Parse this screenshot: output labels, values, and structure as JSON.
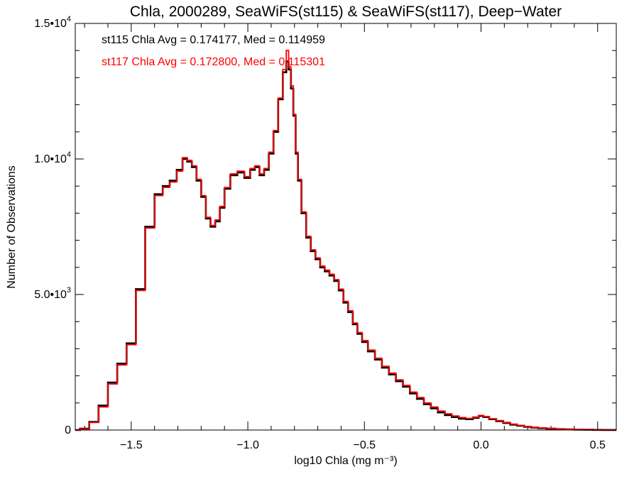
{
  "chart_data": {
    "type": "line",
    "title": "Chla, 2000289, SeaWiFS(st115) & SeaWiFS(st117), Deep−Water",
    "xlabel": "log10 Chla (mg m⁻³)",
    "ylabel": "Number of Observations",
    "xlim": [
      -1.74,
      0.58
    ],
    "ylim": [
      0,
      15000
    ],
    "x_ticks": [
      {
        "value": -1.5,
        "label": "−1.5"
      },
      {
        "value": -1.0,
        "label": "−1.0"
      },
      {
        "value": -0.5,
        "label": "−0.5"
      },
      {
        "value": 0.0,
        "label": "0.0"
      },
      {
        "value": 0.5,
        "label": "0.5"
      }
    ],
    "y_ticks": [
      {
        "value": 0,
        "mantissa": "0",
        "exp": ""
      },
      {
        "value": 5000,
        "mantissa": "5.0•10",
        "exp": "3"
      },
      {
        "value": 10000,
        "mantissa": "1.0•10",
        "exp": "4"
      },
      {
        "value": 15000,
        "mantissa": "1.5•10",
        "exp": "4"
      }
    ],
    "annotations": [
      {
        "text": "st115 Chla Avg = 0.174177, Med = 0.114959",
        "color": "#000000"
      },
      {
        "text": "st117 Chla Avg = 0.172800, Med = 0.115301",
        "color": "#ff0000"
      }
    ],
    "series": [
      {
        "color": "#000000",
        "x": [
          -1.74,
          -1.7,
          -1.66,
          -1.62,
          -1.58,
          -1.54,
          -1.5,
          -1.46,
          -1.42,
          -1.38,
          -1.35,
          -1.32,
          -1.29,
          -1.27,
          -1.25,
          -1.23,
          -1.21,
          -1.19,
          -1.17,
          -1.15,
          -1.13,
          -1.11,
          -1.09,
          -1.06,
          -1.03,
          -1.0,
          -0.98,
          -0.96,
          -0.94,
          -0.92,
          -0.9,
          -0.88,
          -0.86,
          -0.84,
          -0.83,
          -0.82,
          -0.81,
          -0.8,
          -0.79,
          -0.78,
          -0.76,
          -0.74,
          -0.72,
          -0.7,
          -0.68,
          -0.66,
          -0.64,
          -0.62,
          -0.6,
          -0.58,
          -0.56,
          -0.54,
          -0.52,
          -0.5,
          -0.47,
          -0.44,
          -0.41,
          -0.38,
          -0.35,
          -0.32,
          -0.29,
          -0.26,
          -0.23,
          -0.2,
          -0.17,
          -0.14,
          -0.11,
          -0.08,
          -0.05,
          -0.02,
          0.0,
          0.02,
          0.05,
          0.08,
          0.11,
          0.14,
          0.17,
          0.2,
          0.23,
          0.26,
          0.3,
          0.34,
          0.38,
          0.42,
          0.46,
          0.5,
          0.54,
          0.58
        ],
        "values": [
          0,
          50,
          300,
          900,
          1750,
          2450,
          3200,
          5200,
          7500,
          8700,
          9000,
          9200,
          9600,
          10000,
          9900,
          9700,
          9200,
          8600,
          7800,
          7500,
          7700,
          8200,
          8900,
          9400,
          9500,
          9300,
          9600,
          9700,
          9400,
          9600,
          10200,
          11000,
          12200,
          13200,
          13600,
          13300,
          12600,
          11600,
          10200,
          9200,
          8000,
          7100,
          6600,
          6300,
          6000,
          5850,
          5700,
          5500,
          5150,
          4700,
          4350,
          3900,
          3550,
          3250,
          2900,
          2600,
          2300,
          2050,
          1800,
          1600,
          1350,
          1150,
          950,
          800,
          650,
          550,
          480,
          420,
          400,
          450,
          520,
          480,
          400,
          330,
          260,
          200,
          160,
          120,
          90,
          70,
          50,
          35,
          25,
          15,
          10,
          5,
          3,
          2
        ]
      },
      {
        "color": "#ff0000",
        "x": [
          -1.74,
          -1.7,
          -1.66,
          -1.62,
          -1.58,
          -1.54,
          -1.5,
          -1.46,
          -1.42,
          -1.38,
          -1.35,
          -1.32,
          -1.29,
          -1.27,
          -1.25,
          -1.23,
          -1.21,
          -1.19,
          -1.17,
          -1.15,
          -1.13,
          -1.11,
          -1.09,
          -1.06,
          -1.03,
          -1.0,
          -0.98,
          -0.96,
          -0.94,
          -0.92,
          -0.9,
          -0.88,
          -0.86,
          -0.84,
          -0.83,
          -0.82,
          -0.81,
          -0.8,
          -0.79,
          -0.78,
          -0.76,
          -0.74,
          -0.72,
          -0.7,
          -0.68,
          -0.66,
          -0.64,
          -0.62,
          -0.6,
          -0.58,
          -0.56,
          -0.54,
          -0.52,
          -0.5,
          -0.47,
          -0.44,
          -0.41,
          -0.38,
          -0.35,
          -0.32,
          -0.29,
          -0.26,
          -0.23,
          -0.2,
          -0.17,
          -0.14,
          -0.11,
          -0.08,
          -0.05,
          -0.02,
          0.0,
          0.02,
          0.05,
          0.08,
          0.11,
          0.14,
          0.17,
          0.2,
          0.23,
          0.26,
          0.3,
          0.34,
          0.38,
          0.42,
          0.46,
          0.5,
          0.54,
          0.58
        ],
        "values": [
          0,
          40,
          280,
          850,
          1700,
          2400,
          3150,
          5150,
          7450,
          8650,
          8950,
          9150,
          9550,
          10050,
          9950,
          9750,
          9250,
          8650,
          7850,
          7550,
          7750,
          8250,
          8950,
          9450,
          9550,
          9350,
          9650,
          9750,
          9450,
          9650,
          10250,
          11050,
          12250,
          13300,
          14000,
          13400,
          12700,
          11650,
          10250,
          9250,
          8050,
          7150,
          6650,
          6350,
          6050,
          5900,
          5750,
          5550,
          5200,
          4750,
          4400,
          3950,
          3600,
          3300,
          2950,
          2650,
          2350,
          2100,
          1850,
          1650,
          1400,
          1200,
          1000,
          850,
          700,
          600,
          520,
          460,
          430,
          480,
          540,
          500,
          420,
          350,
          280,
          220,
          170,
          130,
          100,
          80,
          60,
          40,
          30,
          20,
          12,
          6,
          4,
          2
        ]
      }
    ]
  }
}
